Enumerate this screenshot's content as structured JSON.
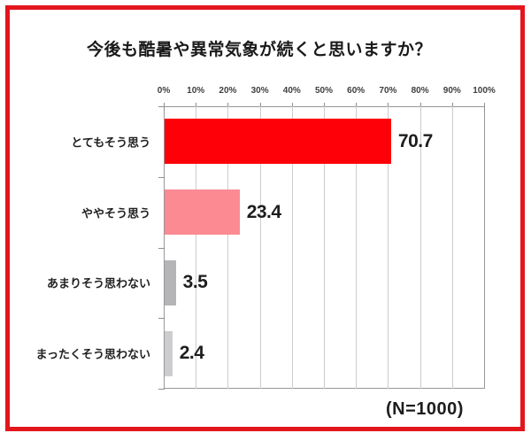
{
  "frame": {
    "border_color": "#e3151d"
  },
  "chart_data": {
    "type": "bar",
    "orientation": "horizontal",
    "title": "今後も酷暑や異常気象が続くと思いますか？",
    "categories": [
      "とてもそう思う",
      "ややそう思う",
      "あまりそう思わない",
      "まったくそう思わない"
    ],
    "values": [
      70.7,
      23.4,
      3.5,
      2.4
    ],
    "value_labels": [
      "70.7",
      "23.4",
      "3.5",
      "2.4"
    ],
    "bar_colors": [
      "#fe0008",
      "#fb8a93",
      "#b5b5b8",
      "#cdcdd0"
    ],
    "axis_ticks": [
      "0%",
      "10%",
      "20%",
      "30%",
      "40%",
      "50%",
      "60%",
      "70%",
      "80%",
      "90%",
      "100%"
    ],
    "xlim": [
      0,
      100
    ],
    "grid": true,
    "legend": "none",
    "sample_note": "(N=1000)",
    "colors": {
      "gridline": "#ccccd0",
      "axis_border": "#97979b",
      "text": "#1d1d1d"
    }
  }
}
